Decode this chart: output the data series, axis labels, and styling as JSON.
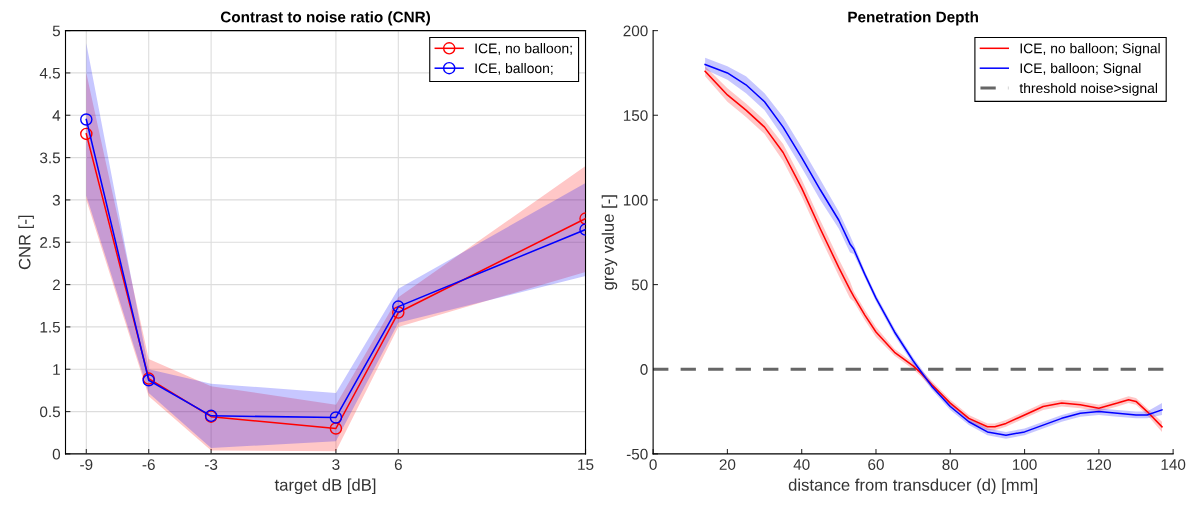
{
  "chart_data": [
    {
      "type": "line",
      "title": "Contrast to noise ratio (CNR)",
      "xlabel": "target dB [dB]",
      "ylabel": "CNR [-]",
      "x": [
        -9,
        -6,
        -3,
        3,
        6,
        15
      ],
      "xlim": [
        -10,
        15
      ],
      "xticks": [
        -9,
        -6,
        -3,
        3,
        6,
        15
      ],
      "ylim": [
        0,
        5
      ],
      "yticks": [
        0,
        0.5,
        1,
        1.5,
        2,
        2.5,
        3,
        3.5,
        4,
        4.5,
        5
      ],
      "grid": true,
      "legend": "top right",
      "marker": "circle",
      "line_style": "solid",
      "series": [
        {
          "name": "ICE, no balloon;",
          "color": "#ff0000",
          "values": [
            3.78,
            0.89,
            0.44,
            0.3,
            1.67,
            2.78
          ],
          "lower": [
            3.0,
            0.68,
            0.04,
            0.03,
            1.5,
            2.15
          ],
          "upper": [
            4.5,
            1.12,
            0.8,
            0.58,
            1.85,
            3.4
          ]
        },
        {
          "name": "ICE, balloon;",
          "color": "#0000ff",
          "values": [
            3.95,
            0.87,
            0.45,
            0.43,
            1.74,
            2.65
          ],
          "lower": [
            3.05,
            0.72,
            0.07,
            0.15,
            1.55,
            2.1
          ],
          "upper": [
            4.85,
            1.0,
            0.83,
            0.72,
            1.95,
            3.2
          ]
        }
      ]
    },
    {
      "type": "line",
      "title": "Penetration Depth",
      "xlabel": "distance from transducer (d) [mm]",
      "ylabel": "grey value [-]",
      "xlim": [
        0,
        140
      ],
      "xticks": [
        0,
        20,
        40,
        60,
        80,
        100,
        120,
        140
      ],
      "ylim": [
        -50,
        200
      ],
      "yticks": [
        -50,
        0,
        50,
        100,
        150,
        200
      ],
      "grid": false,
      "legend": "top right",
      "marker": "none",
      "line_style": "solid",
      "ref_lines": [
        {
          "axis": "y",
          "value": 0,
          "label": "threshold noise>signal",
          "color": "#666666",
          "line_style": "dashed"
        }
      ],
      "series": [
        {
          "name": "ICE, no balloon; Signal",
          "color": "#ff0000",
          "x": [
            14,
            20,
            25,
            30,
            35,
            40,
            45,
            50,
            53,
            54,
            57,
            60,
            65,
            70,
            72,
            75,
            80,
            85,
            90,
            92,
            95,
            100,
            105,
            110,
            115,
            120,
            125,
            128,
            130,
            133,
            137
          ],
          "values": [
            176,
            162,
            153,
            143,
            128,
            107,
            83,
            60,
            47,
            43,
            32,
            22,
            10,
            2,
            -2,
            -9,
            -20,
            -29,
            -34,
            -34,
            -32,
            -27,
            -22,
            -20,
            -21,
            -23,
            -20,
            -18,
            -19,
            -25,
            -34
          ],
          "lower": [
            173,
            158,
            149,
            139,
            123,
            102,
            78,
            55,
            42,
            40,
            29,
            19,
            8,
            0,
            -4,
            -11,
            -22,
            -31,
            -36,
            -36,
            -34,
            -29,
            -24,
            -22,
            -23,
            -25,
            -22,
            -20,
            -21,
            -27,
            -37
          ],
          "upper": [
            179,
            166,
            157,
            147,
            133,
            112,
            88,
            65,
            52,
            46,
            35,
            25,
            12,
            4,
            0,
            -7,
            -18,
            -27,
            -32,
            -32,
            -30,
            -25,
            -20,
            -18,
            -19,
            -21,
            -18,
            -16,
            -17,
            -23,
            -31
          ]
        },
        {
          "name": "ICE, balloon; Signal",
          "color": "#0000ff",
          "x": [
            14,
            20,
            25,
            30,
            35,
            40,
            45,
            50,
            53,
            54,
            57,
            60,
            65,
            70,
            72,
            75,
            80,
            85,
            90,
            95,
            100,
            105,
            110,
            115,
            120,
            125,
            130,
            133,
            137
          ],
          "values": [
            180,
            175,
            168,
            158,
            143,
            125,
            106,
            88,
            74,
            71,
            56,
            42,
            22,
            5,
            -1,
            -10,
            -22,
            -31,
            -37,
            -39,
            -37,
            -33,
            -29,
            -26,
            -25,
            -26,
            -27,
            -27,
            -24
          ],
          "lower": [
            177,
            171,
            163,
            153,
            137,
            119,
            100,
            83,
            69,
            68,
            54,
            40,
            20,
            3,
            -3,
            -12,
            -24,
            -33,
            -39,
            -41,
            -39,
            -35,
            -31,
            -28,
            -27,
            -28,
            -29,
            -29,
            -27
          ],
          "upper": [
            184,
            179,
            173,
            163,
            149,
            131,
            112,
            93,
            79,
            74,
            58,
            44,
            24,
            7,
            1,
            -8,
            -20,
            -29,
            -35,
            -37,
            -35,
            -31,
            -27,
            -24,
            -23,
            -24,
            -25,
            -25,
            -20
          ]
        }
      ]
    }
  ]
}
